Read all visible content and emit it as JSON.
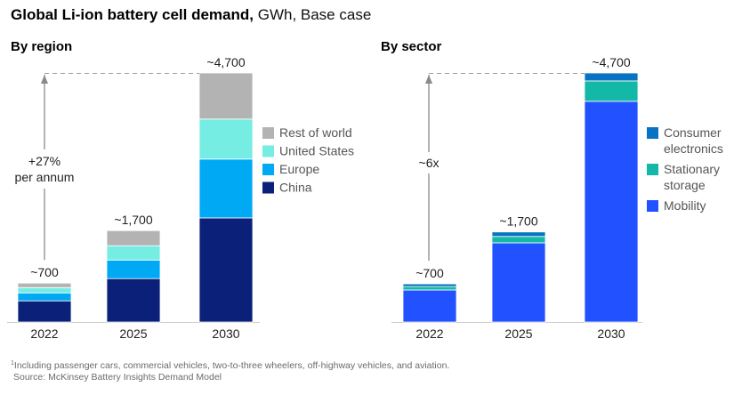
{
  "header": {
    "title_bold": "Global Li-ion battery cell demand,",
    "title_rest": " GWh, Base case"
  },
  "chart_data": [
    {
      "type": "bar",
      "stacked": true,
      "title": "By region",
      "categories": [
        "2022",
        "2025",
        "2030"
      ],
      "total_labels": [
        "~700",
        "~1,700",
        "~4,700"
      ],
      "series": [
        {
          "name": "China",
          "color": "#0b2079",
          "values": [
            400,
            820,
            1965
          ]
        },
        {
          "name": "Europe",
          "color": "#00a9f4",
          "values": [
            150,
            350,
            1110
          ]
        },
        {
          "name": "United States",
          "color": "#76ede3",
          "values": [
            100,
            270,
            755
          ]
        },
        {
          "name": "Rest of world",
          "color": "#b3b3b3",
          "values": [
            85,
            285,
            870
          ]
        }
      ],
      "legend_order": [
        "Rest of world",
        "United States",
        "Europe",
        "China"
      ],
      "legend": "right",
      "annotation": {
        "line1": "+27%",
        "line2": "per annum",
        "from": "2022",
        "to": "2030"
      },
      "ylim": [
        0,
        4700
      ],
      "grid": false
    },
    {
      "type": "bar",
      "stacked": true,
      "title": "By sector",
      "categories": [
        "2022",
        "2025",
        "2030"
      ],
      "total_labels": [
        "~700",
        "~1,700",
        "~4,700"
      ],
      "series": [
        {
          "name": "Mobility",
          "color": "#2251ff",
          "values": [
            605,
            1495,
            4165
          ]
        },
        {
          "name": "Stationary storage",
          "color": "#14b8a6",
          "values": [
            65,
            120,
            385
          ]
        },
        {
          "name": "Consumer electronics",
          "color": "#0a72c2",
          "values": [
            50,
            85,
            150
          ]
        }
      ],
      "legend_order": [
        "Consumer electronics",
        "Stationary storage",
        "Mobility"
      ],
      "legend_labels": {
        "Consumer electronics": [
          "Consumer",
          "electronics"
        ],
        "Stationary storage": [
          "Stationary",
          "storage"
        ],
        "Mobility": [
          "Mobility"
        ]
      },
      "legend": "right",
      "annotation": {
        "line1": "~6x",
        "line2": "",
        "from": "2022",
        "to": "2030"
      },
      "ylim": [
        0,
        4700
      ],
      "grid": false
    }
  ],
  "footnote": {
    "marker": "1",
    "text": "Including passenger cars, commercial vehicles, two-to-three wheelers, off-highway vehicles, and aviation.",
    "source": "Source: McKinsey Battery Insights Demand Model"
  }
}
